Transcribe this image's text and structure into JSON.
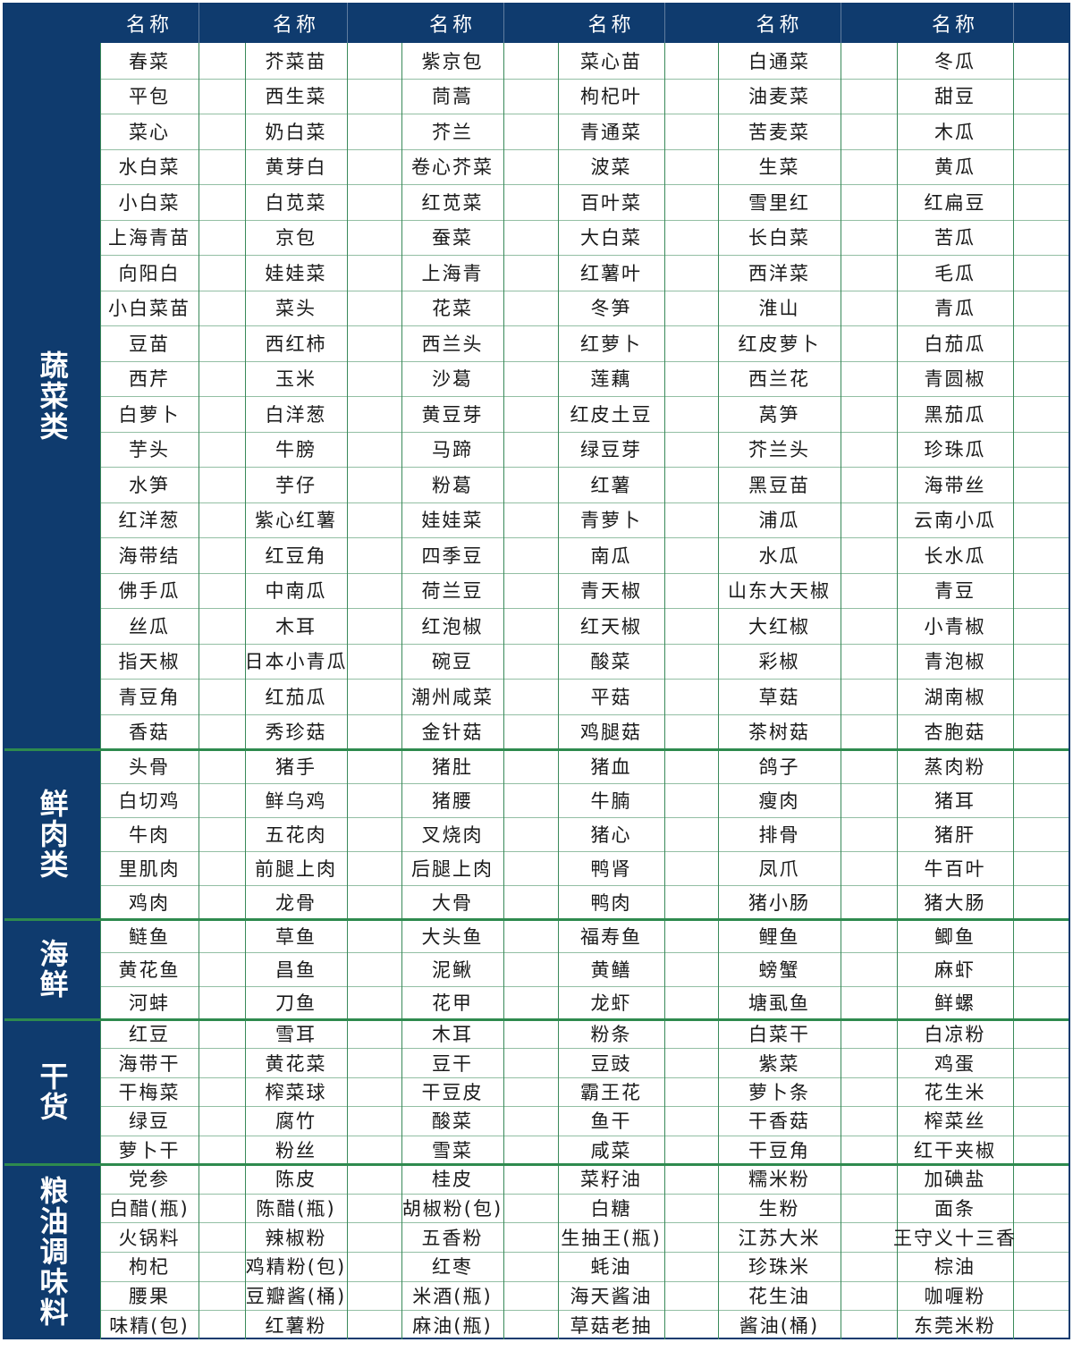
{
  "header": [
    "名称",
    "名称",
    "名称",
    "名称",
    "名称",
    "名称"
  ],
  "sections": [
    {
      "label": "蔬菜类",
      "rows": [
        [
          "春菜",
          "芥菜苗",
          "紫京包",
          "菜心苗",
          "白通菜",
          "冬瓜"
        ],
        [
          "平包",
          "西生菜",
          "茼蒿",
          "枸杞叶",
          "油麦菜",
          "甜豆"
        ],
        [
          "菜心",
          "奶白菜",
          "芥兰",
          "青通菜",
          "苦麦菜",
          "木瓜"
        ],
        [
          "水白菜",
          "黄芽白",
          "卷心芥菜",
          "波菜",
          "生菜",
          "黄瓜"
        ],
        [
          "小白菜",
          "白苋菜",
          "红苋菜",
          "百叶菜",
          "雪里红",
          "红扁豆"
        ],
        [
          "上海青苗",
          "京包",
          "蚕菜",
          "大白菜",
          "长白菜",
          "苦瓜"
        ],
        [
          "向阳白",
          "娃娃菜",
          "上海青",
          "红薯叶",
          "西洋菜",
          "毛瓜"
        ],
        [
          "小白菜苗",
          "菜头",
          "花菜",
          "冬笋",
          "淮山",
          "青瓜"
        ],
        [
          "豆苗",
          "西红柿",
          "西兰头",
          "红萝卜",
          "红皮萝卜",
          "白茄瓜"
        ],
        [
          "西芹",
          "玉米",
          "沙葛",
          "莲藕",
          "西兰花",
          "青圆椒"
        ],
        [
          "白萝卜",
          "白洋葱",
          "黄豆芽",
          "红皮土豆",
          "莴笋",
          "黑茄瓜"
        ],
        [
          "芋头",
          "牛膀",
          "马蹄",
          "绿豆芽",
          "芥兰头",
          "珍珠瓜"
        ],
        [
          "水笋",
          "芋仔",
          "粉葛",
          "红薯",
          "黑豆苗",
          "海带丝"
        ],
        [
          "红洋葱",
          "紫心红薯",
          "娃娃菜",
          "青萝卜",
          "浦瓜",
          "云南小瓜"
        ],
        [
          "海带结",
          "红豆角",
          "四季豆",
          "南瓜",
          "水瓜",
          "长水瓜"
        ],
        [
          "佛手瓜",
          "中南瓜",
          "荷兰豆",
          "青天椒",
          "山东大天椒",
          "青豆"
        ],
        [
          "丝瓜",
          "木耳",
          "红泡椒",
          "红天椒",
          "大红椒",
          "小青椒"
        ],
        [
          "指天椒",
          "日本小青瓜",
          "碗豆",
          "酸菜",
          "彩椒",
          "青泡椒"
        ],
        [
          "青豆角",
          "红茄瓜",
          "潮州咸菜",
          "平菇",
          "草菇",
          "湖南椒"
        ],
        [
          "香菇",
          "秀珍菇",
          "金针菇",
          "鸡腿菇",
          "茶树菇",
          "杏胞菇"
        ]
      ]
    },
    {
      "label": "鲜肉类",
      "rows": [
        [
          "头骨",
          "猪手",
          "猪肚",
          "猪血",
          "鸽子",
          "蒸肉粉"
        ],
        [
          "白切鸡",
          "鲜乌鸡",
          "猪腰",
          "牛腩",
          "瘦肉",
          "猪耳"
        ],
        [
          "牛肉",
          "五花肉",
          "叉烧肉",
          "猪心",
          "排骨",
          "猪肝"
        ],
        [
          "里肌肉",
          "前腿上肉",
          "后腿上肉",
          "鸭肾",
          "凤爪",
          "牛百叶"
        ],
        [
          "鸡肉",
          "龙骨",
          "大骨",
          "鸭肉",
          "猪小肠",
          "猪大肠"
        ]
      ]
    },
    {
      "label": "海鲜",
      "rows": [
        [
          "鲢鱼",
          "草鱼",
          "大头鱼",
          "福寿鱼",
          "鲤鱼",
          "鲫鱼"
        ],
        [
          "黄花鱼",
          "昌鱼",
          "泥鳅",
          "黄鳝",
          "螃蟹",
          "麻虾"
        ],
        [
          "河蚌",
          "刀鱼",
          "花甲",
          "龙虾",
          "塘虱鱼",
          "鲜螺"
        ]
      ]
    },
    {
      "label": "干货",
      "rows": [
        [
          "红豆",
          "雪耳",
          "木耳",
          "粉条",
          "白菜干",
          "白凉粉"
        ],
        [
          "海带干",
          "黄花菜",
          "豆干",
          "豆豉",
          "紫菜",
          "鸡蛋"
        ],
        [
          "干梅菜",
          "榨菜球",
          "干豆皮",
          "霸王花",
          "萝卜条",
          "花生米"
        ],
        [
          "绿豆",
          "腐竹",
          "酸菜",
          "鱼干",
          "干香菇",
          "榨菜丝"
        ],
        [
          "萝卜干",
          "粉丝",
          "雪菜",
          "咸菜",
          "干豆角",
          "红干夹椒"
        ]
      ]
    },
    {
      "label": "粮油调味料",
      "rows": [
        [
          "党参",
          "陈皮",
          "桂皮",
          "菜籽油",
          "糯米粉",
          "加碘盐"
        ],
        [
          "白醋(瓶)",
          "陈醋(瓶)",
          "胡椒粉(包)",
          "白糖",
          "生粉",
          "面条"
        ],
        [
          "火锅料",
          "辣椒粉",
          "五香粉",
          "生抽王(瓶)",
          "江苏大米",
          "王守义十三香"
        ],
        [
          "枸杞",
          "鸡精粉(包)",
          "红枣",
          "蚝油",
          "珍珠米",
          "棕油"
        ],
        [
          "腰果",
          "豆瓣酱(桶)",
          "米酒(瓶)",
          "海天酱油",
          "花生油",
          "咖喱粉"
        ],
        [
          "味精(包)",
          "红薯粉",
          "麻油(瓶)",
          "草菇老抽",
          "酱油(桶)",
          "东莞米粉"
        ]
      ]
    }
  ]
}
